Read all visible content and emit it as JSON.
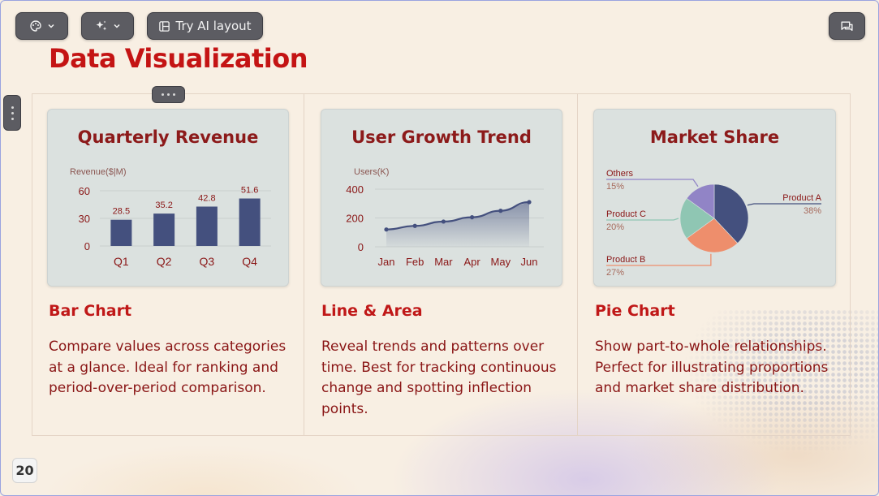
{
  "toolbar": {
    "theme_icon": "palette-icon",
    "magic_icon": "sparkles-icon",
    "ai_layout_label": "Try AI layout",
    "ai_layout_icon": "layout-icon",
    "comments_icon": "comments-icon"
  },
  "slide": {
    "title": "Data Visualization",
    "page_number": "20",
    "colors": {
      "title": "#c41414",
      "accent": "#44507e",
      "text": "#8a1616"
    }
  },
  "sections": [
    {
      "heading": "Bar Chart",
      "description": "Compare values across categories at a glance. Ideal for ranking and period-over-period comparison."
    },
    {
      "heading": "Line & Area",
      "description": "Reveal trends and patterns over time. Best for tracking continuous change and spotting inflection points."
    },
    {
      "heading": "Pie Chart",
      "description": "Show part-to-whole relationships. Perfect for illustrating proportions and market share distribution."
    }
  ],
  "chart_data": [
    {
      "type": "bar",
      "title": "Quarterly Revenue",
      "ylabel": "Revenue($|M)",
      "xlabel": "",
      "categories": [
        "Q1",
        "Q2",
        "Q3",
        "Q4"
      ],
      "values": [
        28.5,
        35.2,
        42.8,
        51.6
      ],
      "yticks": [
        0,
        30,
        60
      ],
      "ylim": [
        0,
        60
      ],
      "grid": true,
      "color": "#44507e"
    },
    {
      "type": "area",
      "title": "User Growth Trend",
      "ylabel": "Users(K)",
      "xlabel": "",
      "categories": [
        "Jan",
        "Feb",
        "Mar",
        "Apr",
        "May",
        "Jun"
      ],
      "values": [
        120,
        145,
        175,
        205,
        250,
        310
      ],
      "yticks": [
        0,
        200,
        400
      ],
      "ylim": [
        0,
        400
      ],
      "grid": true,
      "color": "#44507e"
    },
    {
      "type": "pie",
      "title": "Market Share",
      "slices": [
        {
          "label": "Product A",
          "value": 38,
          "display": "38%",
          "color": "#44507e"
        },
        {
          "label": "Product B",
          "value": 27,
          "display": "27%",
          "color": "#ee8e6c"
        },
        {
          "label": "Product C",
          "value": 20,
          "display": "20%",
          "color": "#8fc6b3"
        },
        {
          "label": "Others",
          "value": 15,
          "display": "15%",
          "color": "#9184c6"
        }
      ]
    }
  ]
}
